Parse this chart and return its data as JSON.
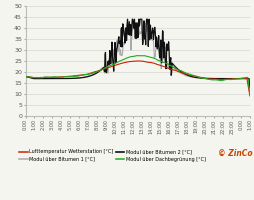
{
  "ylim": [
    0,
    50
  ],
  "yticks": [
    0,
    5,
    10,
    15,
    20,
    25,
    30,
    35,
    40,
    45,
    50
  ],
  "background_color": "#f5f5f0",
  "grid_color": "#cccccc",
  "legend": [
    {
      "label": "Lufttemperatur Wetterstation [°C]",
      "color": "#cc2200",
      "lw": 0.8
    },
    {
      "label": "Modul über Bitumen 1 [°C]",
      "color": "#aaaaaa",
      "lw": 0.8
    },
    {
      "label": "Modul über Bitumen 2 [°C]",
      "color": "#111111",
      "lw": 0.9
    },
    {
      "label": "Modul über Dachbegrünung [°C]",
      "color": "#22aa22",
      "lw": 0.8
    }
  ],
  "watermark": "© ZinCo",
  "xtick_labels": [
    "0:00",
    "1:00",
    "2:00",
    "3:00",
    "4:00",
    "5:00",
    "6:00",
    "7:00",
    "8:00",
    "9:00",
    "10:00",
    "11:00",
    "12:00",
    "13:00",
    "14:00",
    "15:00",
    "16:00",
    "17:00",
    "18:00",
    "19:00",
    "20:00",
    "21:00",
    "22:00",
    "23:00",
    "0:00",
    "1:00"
  ]
}
